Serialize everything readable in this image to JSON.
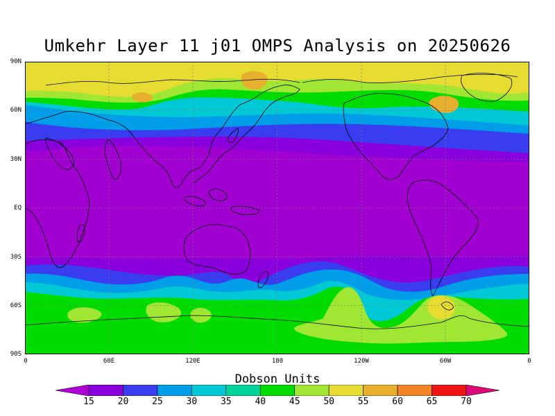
{
  "title": "Umkehr Layer 11 j01 OMPS Analysis on 20250626",
  "lat_labels": [
    "90N",
    "60N",
    "30N",
    "EQ",
    "30S",
    "60S",
    "90S"
  ],
  "lon_labels": [
    "0",
    "60E",
    "120E",
    "180",
    "120W",
    "60W",
    "0"
  ],
  "colorbar": {
    "title": "Dobson Units",
    "labels": [
      "15",
      "20",
      "25",
      "30",
      "35",
      "40",
      "45",
      "50",
      "55",
      "60",
      "65",
      "70"
    ],
    "colors": [
      "#b000d8",
      "#8a00dc",
      "#3a3cf0",
      "#009ee8",
      "#00c8d4",
      "#00d49a",
      "#00dc00",
      "#a0e632",
      "#e6dc32",
      "#e6af2d",
      "#f08228",
      "#f01414",
      "#dc0a78"
    ]
  },
  "map": {
    "projection": "equirectangular, 0 to 360 longitude",
    "field_colors": {
      "tropics": "#a000d0",
      "band_35": "#8a00dc",
      "band_30": "#3a3cf0",
      "band_25": "#009ee8",
      "band_20": "#00c8d4",
      "band_15": "#00dc00",
      "band_10": "#a0e632",
      "polar_yellow": "#e6dc32",
      "polar_orange": "#e6af2d"
    },
    "grid": "dotted",
    "coastlines": "black outlines"
  }
}
